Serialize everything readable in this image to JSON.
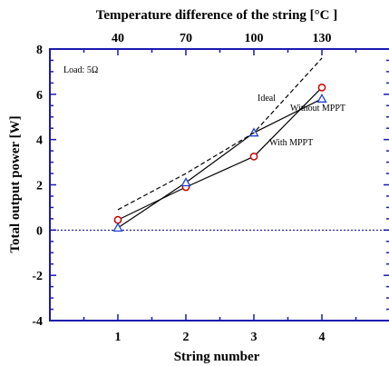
{
  "chart_data": {
    "type": "line",
    "x_top_title": "Temperature difference of the string [°C ]",
    "xlabel": "String number",
    "ylabel": "Total output power  [W]",
    "x": [
      1,
      2,
      3,
      4
    ],
    "xlim": [
      0,
      5
    ],
    "ylim": [
      -4,
      8
    ],
    "x_ticks": [
      "1",
      "2",
      "3",
      "4"
    ],
    "x_top_ticks": [
      "40",
      "70",
      "100",
      "130"
    ],
    "y_ticks": [
      "-4",
      "-2",
      "0",
      "2",
      "4",
      "6",
      "8"
    ],
    "grid": false,
    "series": [
      {
        "key": "mppt",
        "name": "With MPPT",
        "values": [
          0.45,
          1.9,
          3.25,
          6.3
        ],
        "color": "#000000",
        "marker_color": "#cc0000",
        "marker": "circle",
        "dash": "solid"
      },
      {
        "key": "nompt",
        "name": "Without MPPT",
        "values": [
          0.1,
          2.1,
          4.3,
          5.8
        ],
        "color": "#000000",
        "marker_color": "#1f3fcc",
        "marker": "triangle",
        "dash": "solid"
      },
      {
        "key": "ideal",
        "name": "Ideal",
        "values": [
          0.9,
          2.5,
          4.3,
          7.6
        ],
        "color": "#000000",
        "marker": "none",
        "dash": "dashed"
      }
    ],
    "reference_line": {
      "y": 0,
      "color": "#00008b",
      "style": "dotted"
    },
    "annotations": [
      {
        "text": "Load: 5Ω"
      },
      {
        "text": "Ideal"
      },
      {
        "text": "Without MPPT"
      },
      {
        "text": "With MPPT"
      }
    ],
    "colors": {
      "axis": "#1a1ab0",
      "text": "#000000"
    }
  }
}
